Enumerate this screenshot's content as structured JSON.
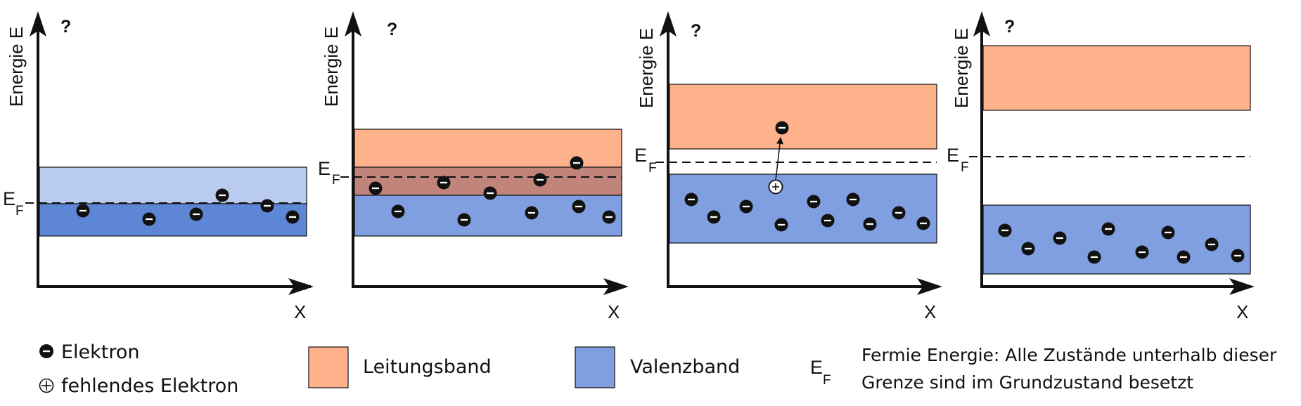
{
  "colors": {
    "conduction": "#fdb28b",
    "valence": "#7f9fe0",
    "valence_dark": "#5d86d6",
    "valence_light": "#b9ccf0",
    "overlap": "#c0847a",
    "axis": "#111111"
  },
  "panels": [
    {
      "question": "?",
      "y_label": "Energie E",
      "x_label": "X",
      "ef_main": "E",
      "ef_sub": "F"
    },
    {
      "question": "?",
      "y_label": "Energie E",
      "x_label": "X",
      "ef_main": "E",
      "ef_sub": "F"
    },
    {
      "question": "?",
      "y_label": "Energie E",
      "x_label": "X",
      "ef_main": "E",
      "ef_sub": "F"
    },
    {
      "question": "?",
      "y_label": "Energie E",
      "x_label": "X",
      "ef_main": "E",
      "ef_sub": "F"
    }
  ],
  "legend": {
    "electron": "Elektron",
    "hole": "fehlendes  Elektron",
    "conduction_band": "Leitungsband",
    "valence_band": "Valenzband",
    "ef_main": "E",
    "ef_sub": "F",
    "fermi_line1": "Fermie Energie: Alle Zustände unterhalb dieser",
    "fermi_line2": "Grenze sind im Grundzustand besetzt"
  }
}
